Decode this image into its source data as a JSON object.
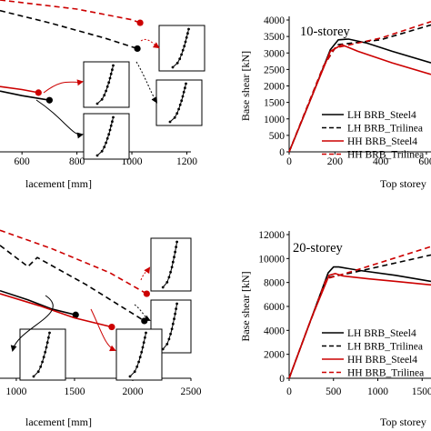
{
  "chart_data": [
    {
      "type": "line",
      "panel": "top-left",
      "xlabel": "lacement [mm]",
      "xticks": [
        "600",
        "800",
        "1000",
        "1200"
      ],
      "xlim": [
        520,
        1215
      ],
      "ylim": [
        0,
        1
      ],
      "grid": false,
      "series": [
        {
          "color": "#000000",
          "style": "solid",
          "x": [
            520,
            600,
            700
          ],
          "y": [
            0.4,
            0.37,
            0.34
          ],
          "marker_at_end": true
        },
        {
          "color": "#cc0000",
          "style": "solid",
          "x": [
            520,
            600,
            660
          ],
          "y": [
            0.43,
            0.41,
            0.39
          ],
          "marker_at_end": true
        },
        {
          "color": "#000000",
          "style": "dashed",
          "x": [
            520,
            700,
            900,
            1020
          ],
          "y": [
            0.93,
            0.85,
            0.75,
            0.68
          ],
          "marker_at_end": true
        },
        {
          "color": "#cc0000",
          "style": "dashed",
          "x": [
            520,
            800,
            1000,
            1030
          ],
          "y": [
            1.0,
            0.94,
            0.87,
            0.85
          ],
          "marker_at_end": true
        }
      ]
    },
    {
      "type": "line",
      "panel": "top-right",
      "title": "10-storey",
      "xlabel": "Top storey",
      "ylabel": "Base shear [kN]",
      "xticks": [
        "0",
        "200",
        "400",
        "600"
      ],
      "yticks": [
        "0",
        "500",
        "1000",
        "1500",
        "2000",
        "2500",
        "3000",
        "3500",
        "4000"
      ],
      "xlim": [
        0,
        620
      ],
      "ylim": [
        0,
        4000
      ],
      "grid": false,
      "legend_position": "bottom-right",
      "series": [
        {
          "name": "LH BRB_Steel4",
          "color": "#000000",
          "style": "solid",
          "x": [
            0,
            100,
            180,
            215,
            260,
            340,
            450,
            620
          ],
          "y": [
            0,
            1700,
            3100,
            3400,
            3420,
            3300,
            3050,
            2700
          ]
        },
        {
          "name": "LH BRB_Trilinea",
          "color": "#000000",
          "style": "dashed",
          "x": [
            0,
            150,
            210,
            400,
            620
          ],
          "y": [
            0,
            2600,
            3250,
            3400,
            3850
          ]
        },
        {
          "name": "HH BRB_Steel4",
          "color": "#cc0000",
          "style": "solid",
          "x": [
            0,
            100,
            180,
            230,
            300,
            450,
            620
          ],
          "y": [
            0,
            1700,
            3050,
            3250,
            3050,
            2700,
            2350
          ]
        },
        {
          "name": "HH BRB_Trilinea",
          "color": "#cc0000",
          "style": "dashed",
          "x": [
            0,
            150,
            200,
            400,
            620
          ],
          "y": [
            0,
            2600,
            3150,
            3450,
            3950
          ]
        }
      ]
    },
    {
      "type": "line",
      "panel": "bottom-left",
      "xlabel": "lacement [mm]",
      "xticks": [
        "1000",
        "1500",
        "2000",
        "2500"
      ],
      "xlim": [
        860,
        2500
      ],
      "ylim": [
        0,
        1
      ],
      "grid": false,
      "series": [
        {
          "color": "#000000",
          "style": "solid",
          "x": [
            860,
            1100,
            1300,
            1510
          ],
          "y": [
            0.58,
            0.52,
            0.46,
            0.42
          ],
          "marker_at_end": true
        },
        {
          "color": "#cc0000",
          "style": "solid",
          "x": [
            860,
            1200,
            1500,
            1820
          ],
          "y": [
            0.56,
            0.48,
            0.4,
            0.34
          ],
          "marker_at_end": true
        },
        {
          "color": "#000000",
          "style": "dashed",
          "x": [
            860,
            1100,
            1180,
            1600,
            2100
          ],
          "y": [
            0.88,
            0.74,
            0.8,
            0.62,
            0.38
          ],
          "marker_at_end": true
        },
        {
          "color": "#cc0000",
          "style": "dashed",
          "x": [
            860,
            1300,
            1800,
            2120
          ],
          "y": [
            0.98,
            0.86,
            0.7,
            0.56
          ],
          "marker_at_end": true
        }
      ]
    },
    {
      "type": "line",
      "panel": "bottom-right",
      "title": "20-storey",
      "xlabel": "Top storey",
      "ylabel": "Base shear [kN]",
      "xticks": [
        "0",
        "500",
        "1000",
        "1500"
      ],
      "yticks": [
        "0",
        "2000",
        "4000",
        "6000",
        "8000",
        "10000",
        "12000"
      ],
      "xlim": [
        0,
        1600
      ],
      "ylim": [
        0,
        12000
      ],
      "grid": false,
      "legend_position": "bottom-right",
      "series": [
        {
          "name": "LH BRB_Steel4",
          "color": "#000000",
          "style": "solid",
          "x": [
            0,
            250,
            440,
            500,
            560,
            800,
            1200,
            1600
          ],
          "y": [
            0,
            5000,
            8800,
            9300,
            9300,
            9000,
            8600,
            8100
          ]
        },
        {
          "name": "LH BRB_Trilinea",
          "color": "#000000",
          "style": "dashed",
          "x": [
            0,
            200,
            430,
            700,
            1000,
            1300,
            1600
          ],
          "y": [
            0,
            4000,
            8400,
            8800,
            9300,
            9800,
            10300
          ]
        },
        {
          "name": "HH BRB_Steel4",
          "color": "#cc0000",
          "style": "solid",
          "x": [
            0,
            250,
            450,
            520,
            600,
            900,
            1200,
            1600
          ],
          "y": [
            0,
            5000,
            8600,
            8750,
            8550,
            8300,
            8100,
            7800
          ]
        },
        {
          "name": "HH BRB_Trilinea",
          "color": "#cc0000",
          "style": "dashed",
          "x": [
            0,
            200,
            420,
            700,
            1000,
            1300,
            1600
          ],
          "y": [
            0,
            4000,
            8300,
            8900,
            9600,
            10300,
            11000
          ]
        }
      ]
    }
  ]
}
